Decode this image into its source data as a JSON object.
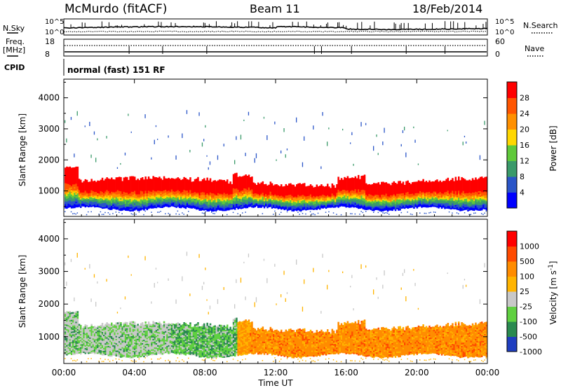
{
  "header": {
    "station": "McMurdo (fitACF)",
    "beam": "Beam 11",
    "date": "18/Feb/2014"
  },
  "top_panels": {
    "nsky": {
      "left_label": "N.Sky",
      "left_ticks": [
        "10^5",
        "10^0"
      ],
      "right_label": "N.Search",
      "right_ticks": [
        "10^5",
        "10^0"
      ]
    },
    "freq": {
      "left_label_1": "Freq.",
      "left_label_2": "[MHz]",
      "left_ticks": [
        "18",
        "8"
      ],
      "right_label": "Nave",
      "right_ticks": [
        "60",
        "0"
      ]
    },
    "cpid": {
      "label": "CPID",
      "value": "normal (fast) 151 RF"
    }
  },
  "colors": {
    "power_scale": [
      "#0000ff",
      "#2a55c8",
      "#3a9a6a",
      "#5fc93a",
      "#ffd700",
      "#ff9000",
      "#ff5500",
      "#ff0000"
    ],
    "velocity_scale": [
      "#ff0000",
      "#ff4a00",
      "#ff8c00",
      "#ffb400",
      "#c8c8c8",
      "#5fd040",
      "#2a8a50",
      "#1f3ec0"
    ]
  },
  "chart_data": [
    {
      "type": "heatmap",
      "name": "power",
      "ylabel": "Slant Range [km]",
      "yticks": [
        1000,
        2000,
        3000,
        4000
      ],
      "ylim": [
        180,
        4600
      ],
      "xlim": [
        0,
        24
      ],
      "xticks": [
        "00:00",
        "04:00",
        "08:00",
        "12:00",
        "16:00",
        "20:00",
        "00:00"
      ],
      "colorbar": {
        "label": "Power [dB]",
        "ticks": [
          "4",
          "8",
          "12",
          "16",
          "20",
          "24",
          "28"
        ],
        "range": [
          0,
          32
        ]
      }
    },
    {
      "type": "heatmap",
      "name": "velocity",
      "ylabel": "Slant Range [km]",
      "yticks": [
        1000,
        2000,
        3000,
        4000
      ],
      "ylim": [
        180,
        4600
      ],
      "xlim": [
        0,
        24
      ],
      "xticks": [
        "00:00",
        "04:00",
        "08:00",
        "12:00",
        "16:00",
        "20:00",
        "00:00"
      ],
      "xlabel": "Time UT",
      "colorbar": {
        "label": "Velocity [m s^-1]",
        "ticks": [
          "1000",
          "500",
          "100",
          "25",
          "-25",
          "-100",
          "-500",
          "-1000"
        ]
      }
    }
  ]
}
